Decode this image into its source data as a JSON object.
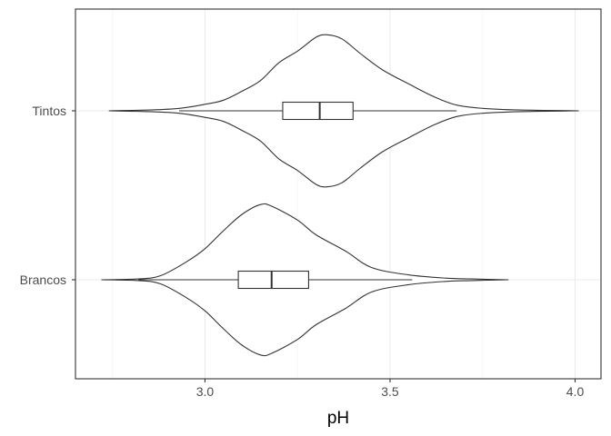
{
  "chart_data": {
    "type": "violin",
    "xlabel": "pH",
    "ylabel": "",
    "xlim": [
      2.65,
      4.07
    ],
    "x_ticks": [
      {
        "value": 3.0,
        "label": "3.0"
      },
      {
        "value": 3.5,
        "label": "3.5"
      },
      {
        "value": 4.0,
        "label": "4.0"
      }
    ],
    "x_minor_gridlines": [
      2.75,
      3.25,
      3.75
    ],
    "grid": true,
    "categories": [
      "Tintos",
      "Brancos"
    ],
    "series": [
      {
        "name": "Tintos",
        "violin": {
          "density": [
            [
              2.74,
              0.0
            ],
            [
              2.85,
              0.01
            ],
            [
              2.93,
              0.03
            ],
            [
              3.0,
              0.08
            ],
            [
              3.05,
              0.13
            ],
            [
              3.1,
              0.24
            ],
            [
              3.15,
              0.37
            ],
            [
              3.2,
              0.59
            ],
            [
              3.25,
              0.73
            ],
            [
              3.3,
              0.9
            ],
            [
              3.33,
              0.93
            ],
            [
              3.37,
              0.88
            ],
            [
              3.42,
              0.7
            ],
            [
              3.48,
              0.5
            ],
            [
              3.55,
              0.33
            ],
            [
              3.62,
              0.17
            ],
            [
              3.68,
              0.07
            ],
            [
              3.75,
              0.03
            ],
            [
              3.85,
              0.01
            ],
            [
              4.01,
              0.0
            ]
          ]
        },
        "box": {
          "min": 2.93,
          "q1": 3.21,
          "median": 3.31,
          "q3": 3.4,
          "max": 3.68
        }
      },
      {
        "name": "Brancos",
        "violin": {
          "density": [
            [
              2.72,
              0.0
            ],
            [
              2.82,
              0.01
            ],
            [
              2.88,
              0.05
            ],
            [
              2.95,
              0.22
            ],
            [
              3.0,
              0.38
            ],
            [
              3.05,
              0.6
            ],
            [
              3.1,
              0.8
            ],
            [
              3.15,
              0.92
            ],
            [
              3.18,
              0.9
            ],
            [
              3.25,
              0.73
            ],
            [
              3.3,
              0.55
            ],
            [
              3.38,
              0.35
            ],
            [
              3.45,
              0.15
            ],
            [
              3.55,
              0.06
            ],
            [
              3.65,
              0.02
            ],
            [
              3.72,
              0.01
            ],
            [
              3.82,
              0.0
            ]
          ]
        },
        "box": {
          "min": 2.82,
          "q1": 3.09,
          "median": 3.18,
          "q3": 3.28,
          "max": 3.56
        }
      }
    ]
  },
  "colors": {
    "panel_border": "#333333",
    "grid_major": "#ebebeb",
    "grid_minor": "#f5f5f5",
    "violin_stroke": "#333333",
    "box_stroke": "#333333",
    "fill": "#ffffff"
  }
}
